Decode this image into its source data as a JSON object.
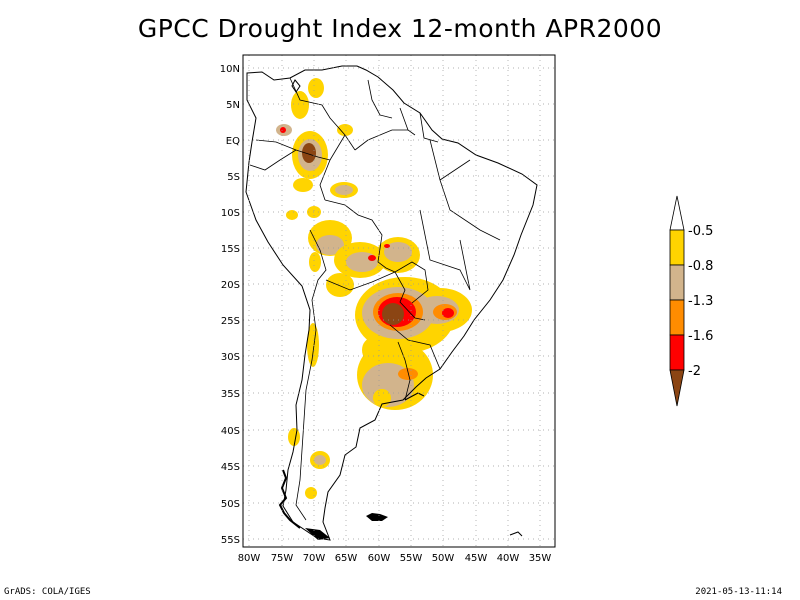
{
  "title": "GPCC Drought Index 12-month APR2000",
  "footer": {
    "left": "GrADS: COLA/IGES",
    "right": "2021-05-13-11:14"
  },
  "map": {
    "region": "South America",
    "lat_range": [
      -56,
      12
    ],
    "lon_range": [
      -81,
      -33
    ],
    "lat_ticks": [
      "10N",
      "5N",
      "EQ",
      "5S",
      "10S",
      "15S",
      "20S",
      "25S",
      "30S",
      "35S",
      "40S",
      "45S",
      "50S",
      "55S"
    ],
    "lon_ticks": [
      "80W",
      "75W",
      "70W",
      "65W",
      "60W",
      "55W",
      "50W",
      "45W",
      "40W",
      "35W"
    ],
    "grid": true
  },
  "legend": {
    "orientation": "vertical",
    "placement": "right",
    "labels": [
      "-0.5",
      "-0.8",
      "-1.3",
      "-1.6",
      "-2"
    ],
    "colors": {
      "moderate": "#ffd400",
      "severe": "#d2b48c",
      "very_severe": "#ff8c00",
      "extreme": "#ff0000",
      "exceptional": "#8b4513"
    }
  }
}
